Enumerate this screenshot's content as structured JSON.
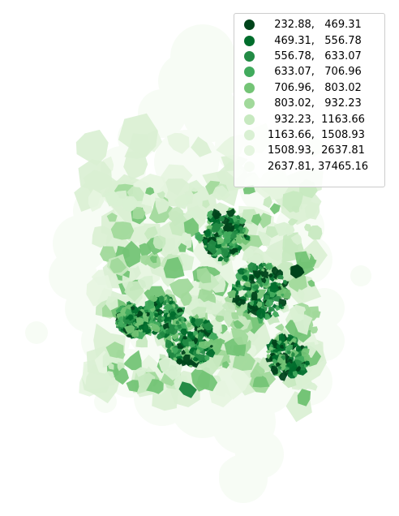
{
  "map": {
    "color_scheme": "Greens",
    "background": "#ffffff"
  },
  "legend": {
    "items": [
      {
        "label": "  232.88,   469.31",
        "color": "#00441b"
      },
      {
        "label": "  469.31,   556.78",
        "color": "#006d2c"
      },
      {
        "label": "  556.78,   633.07",
        "color": "#238b45"
      },
      {
        "label": "  633.07,   706.96",
        "color": "#41ab5d"
      },
      {
        "label": "  706.96,   803.02",
        "color": "#74c476"
      },
      {
        "label": "  803.02,   932.23",
        "color": "#a1d99b"
      },
      {
        "label": "  932.23,  1163.66",
        "color": "#c7e9c0"
      },
      {
        "label": "1163.66,  1508.93",
        "color": "#d9f0d3"
      },
      {
        "label": "1508.93,  2637.81",
        "color": "#e5f5e0"
      },
      {
        "label": "2637.81, 37465.16",
        "color": "#f7fcf5"
      }
    ]
  }
}
